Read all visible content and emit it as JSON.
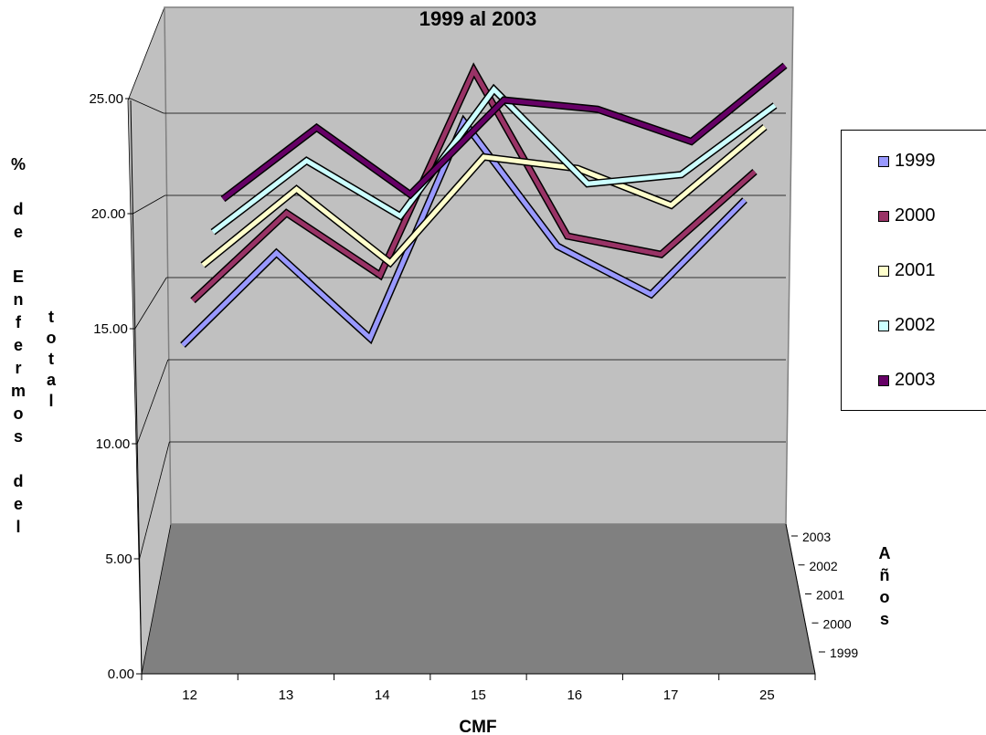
{
  "chart_data": {
    "type": "line",
    "title": "1999 al 2003",
    "xlabel": "CMF",
    "ylabel_left": "% de Enfermos del",
    "ylabel_right": "total",
    "zlabel": "Años",
    "categories": [
      "12",
      "13",
      "14",
      "15",
      "16",
      "17",
      "25"
    ],
    "y_ticks": [
      "0.00",
      "5.00",
      "10.00",
      "15.00",
      "20.00",
      "25.00"
    ],
    "ylim": [
      0,
      25
    ],
    "z_ticks": [
      "2003",
      "2002",
      "2001",
      "2000",
      "1999"
    ],
    "grid": true,
    "legend_position": "right",
    "series": [
      {
        "name": "1999",
        "color": "#9999ff",
        "values": [
          14.5,
          18.5,
          14.8,
          24.2,
          18.8,
          16.7,
          20.8
        ]
      },
      {
        "name": "2000",
        "color": "#993366",
        "values": [
          16.0,
          19.8,
          17.1,
          26.0,
          18.8,
          18.0,
          21.6
        ]
      },
      {
        "name": "2001",
        "color": "#ffffcc",
        "values": [
          17.1,
          20.4,
          17.2,
          21.8,
          21.3,
          19.7,
          23.1
        ]
      },
      {
        "name": "2002",
        "color": "#ccffff",
        "values": [
          18.1,
          21.2,
          18.8,
          24.3,
          20.2,
          20.6,
          23.6
        ]
      },
      {
        "name": "2003",
        "color": "#660066",
        "values": [
          19.1,
          22.2,
          19.3,
          23.4,
          23.0,
          21.6,
          24.9
        ]
      }
    ]
  }
}
